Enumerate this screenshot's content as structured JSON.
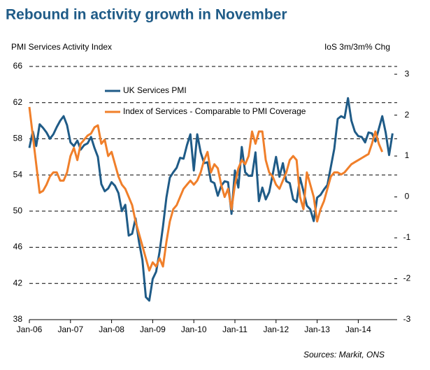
{
  "chart_data": {
    "type": "line",
    "title": "Rebound in activity growth in November",
    "y_label": "PMI Services Activity Index",
    "y2_label": "IoS 3m/3m% Chg",
    "source": "Sources: Markit, ONS",
    "categories": [
      "Jan-06",
      null,
      null,
      null,
      null,
      null,
      null,
      null,
      null,
      null,
      null,
      null,
      "Jan-07",
      null,
      null,
      null,
      null,
      null,
      null,
      null,
      null,
      null,
      null,
      null,
      "Jan-08",
      null,
      null,
      null,
      null,
      null,
      null,
      null,
      null,
      null,
      null,
      null,
      "Jan-09",
      null,
      null,
      null,
      null,
      null,
      null,
      null,
      null,
      null,
      null,
      null,
      "Jan-10",
      null,
      null,
      null,
      null,
      null,
      null,
      null,
      null,
      null,
      null,
      null,
      "Jan-11",
      null,
      null,
      null,
      null,
      null,
      null,
      null,
      null,
      null,
      null,
      null,
      "Jan-12",
      null,
      null,
      null,
      null,
      null,
      null,
      null,
      null,
      null,
      null,
      null,
      "Jan-13",
      null,
      null,
      null,
      null,
      null,
      null,
      null,
      null,
      null,
      null,
      null,
      "Jan-14",
      null,
      null,
      null,
      null,
      null,
      null,
      null,
      null,
      null,
      null
    ],
    "series": [
      {
        "name": "UK Services PMI",
        "color": "#1f5b87",
        "axis": "y",
        "values": [
          57.0,
          58.8,
          57.2,
          59.6,
          59.2,
          58.7,
          58.0,
          58.5,
          59.3,
          60.0,
          60.5,
          59.5,
          57.6,
          57.2,
          57.8,
          56.8,
          57.3,
          57.5,
          58.2,
          57.0,
          56.0,
          53.0,
          52.2,
          52.5,
          53.2,
          52.8,
          52.0,
          50.0,
          50.7,
          47.3,
          47.5,
          49.2,
          46.6,
          44.6,
          40.5,
          40.1,
          42.5,
          43.3,
          45.5,
          48.3,
          51.5,
          53.7,
          54.3,
          54.8,
          55.9,
          55.8,
          57.3,
          58.5,
          54.5,
          58.5,
          56.5,
          55.3,
          55.4,
          53.3,
          53.1,
          51.7,
          52.8,
          53.3,
          53.2,
          49.7,
          54.5,
          52.6,
          57.1,
          54.3,
          53.9,
          53.9,
          56.5,
          51.1,
          52.6,
          51.3,
          52.1,
          54.0,
          56.0,
          53.8,
          55.3,
          53.3,
          53.1,
          51.3,
          51.0,
          53.7,
          52.2,
          50.6,
          50.2,
          48.9,
          51.5,
          51.8,
          52.4,
          52.9,
          54.9,
          56.9,
          60.2,
          60.5,
          60.3,
          62.5,
          60.0,
          58.8,
          58.3,
          58.2,
          57.6,
          58.7,
          58.6,
          57.7,
          59.1,
          60.5,
          58.7,
          56.2,
          58.6
        ]
      },
      {
        "name": "Index of Services - Comparable to PMI Coverage",
        "color": "#f07f2a",
        "axis": "y2",
        "values": [
          2.2,
          1.5,
          0.8,
          0.1,
          0.15,
          0.3,
          0.5,
          0.6,
          0.6,
          0.4,
          0.4,
          0.6,
          1.0,
          1.2,
          0.9,
          1.3,
          1.4,
          1.5,
          1.55,
          1.7,
          1.75,
          1.3,
          1.4,
          1.0,
          1.1,
          0.8,
          0.5,
          0.3,
          0.2,
          0.0,
          -0.2,
          -0.6,
          -0.9,
          -1.2,
          -1.5,
          -1.8,
          -1.6,
          -1.7,
          -1.5,
          -1.7,
          -1.1,
          -0.6,
          -0.3,
          -0.2,
          0.0,
          0.2,
          0.3,
          0.4,
          0.3,
          0.4,
          0.6,
          0.9,
          1.1,
          0.6,
          0.8,
          0.7,
          0.3,
          0.0,
          0.2,
          -0.3,
          0.3,
          0.7,
          0.9,
          0.8,
          1.0,
          1.6,
          1.3,
          1.6,
          1.6,
          0.9,
          0.6,
          0.5,
          0.3,
          0.2,
          0.4,
          0.6,
          0.9,
          1.0,
          0.9,
          0.0,
          -0.3,
          0.6,
          0.3,
          0.0,
          -0.6,
          -0.3,
          -0.1,
          0.2,
          0.5,
          0.6,
          0.6,
          0.55,
          0.6,
          0.7,
          0.8,
          0.85,
          0.9,
          0.95,
          1.0,
          1.05,
          1.3,
          1.6,
          1.3,
          1.1,
          null,
          null,
          null
        ]
      }
    ],
    "ylim": [
      38,
      66
    ],
    "yticks": [
      38,
      42,
      46,
      50,
      54,
      58,
      62,
      66
    ],
    "y2lim": [
      -3,
      3.19
    ],
    "y2ticks": [
      -3,
      -2,
      -1,
      0,
      1,
      2,
      3
    ],
    "grid": true
  }
}
